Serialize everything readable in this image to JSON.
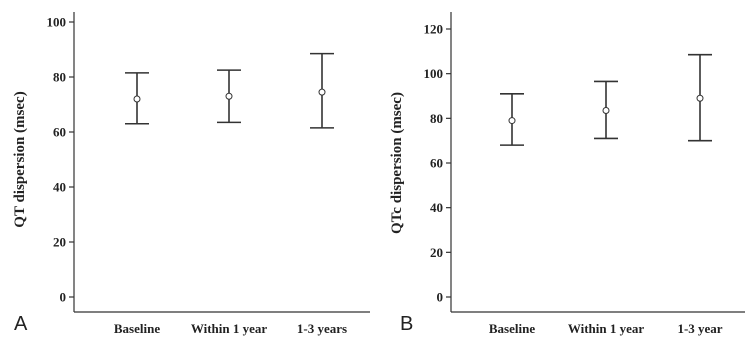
{
  "chart_data": [
    {
      "type": "errorbar",
      "panel_label": "A",
      "ylabel": "QT dispersion (msec)",
      "categories": [
        "Baseline",
        "Within 1 year",
        "1-3 years"
      ],
      "mean": [
        72,
        73,
        74.5
      ],
      "lower": [
        63,
        63.5,
        61.5
      ],
      "upper": [
        81.5,
        82.5,
        88.5
      ],
      "ylim": [
        0,
        100
      ],
      "yticks": [
        0,
        20,
        40,
        60,
        80,
        100
      ],
      "grid": false
    },
    {
      "type": "errorbar",
      "panel_label": "B",
      "ylabel": "QTc dispersion (msec)",
      "categories": [
        "Baseline",
        "Within 1 year",
        "1-3 year"
      ],
      "mean": [
        79,
        83.5,
        89
      ],
      "lower": [
        68,
        71,
        70
      ],
      "upper": [
        91,
        96.5,
        108.5
      ],
      "ylim": [
        0,
        120
      ],
      "yticks": [
        0,
        20,
        40,
        60,
        80,
        100,
        120
      ],
      "grid": false
    }
  ]
}
